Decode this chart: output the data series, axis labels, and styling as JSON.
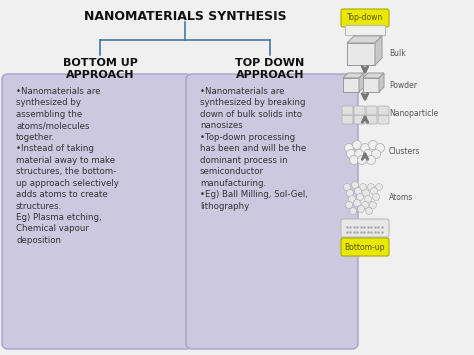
{
  "title": "NANOMATERIALS SYNTHESIS",
  "left_heading": "BOTTOM UP\nAPPROACH",
  "right_heading": "TOP DOWN\nAPPROACH",
  "left_text": "•Nanomaterials are\nsynthesized by\nassembling the\natoms/molecules\ntogether.\n•Instead of taking\nmaterial away to make\nstructures, the bottom-\nup approach selectively\nadds atoms to create\nstructures.\nEg) Plasma etching,\nChemical vapour\ndeposition",
  "right_text": "•Nanomaterials are\nsynthesized by breaking\ndown of bulk solids into\nnanosizes\n•Top-down processing\nhas been and will be the\ndominant process in\nsemiconductor\nmanufacturing.\n•Eg) Ball Milling, Sol-Gel,\nlithography",
  "box_bg": "#ccc8e0",
  "box_border": "#aaa0c8",
  "title_color": "#111111",
  "heading_color": "#111111",
  "text_color": "#333333",
  "line_color": "#4477aa",
  "bg_color": "#f0f0f0",
  "topdown_label_color": "#aaaa00",
  "bottomup_label_color": "#aaaa00",
  "other_label_color": "#555555",
  "arrow_color": "#777777",
  "shape_face": "#e8e8e8",
  "shape_edge": "#999999"
}
